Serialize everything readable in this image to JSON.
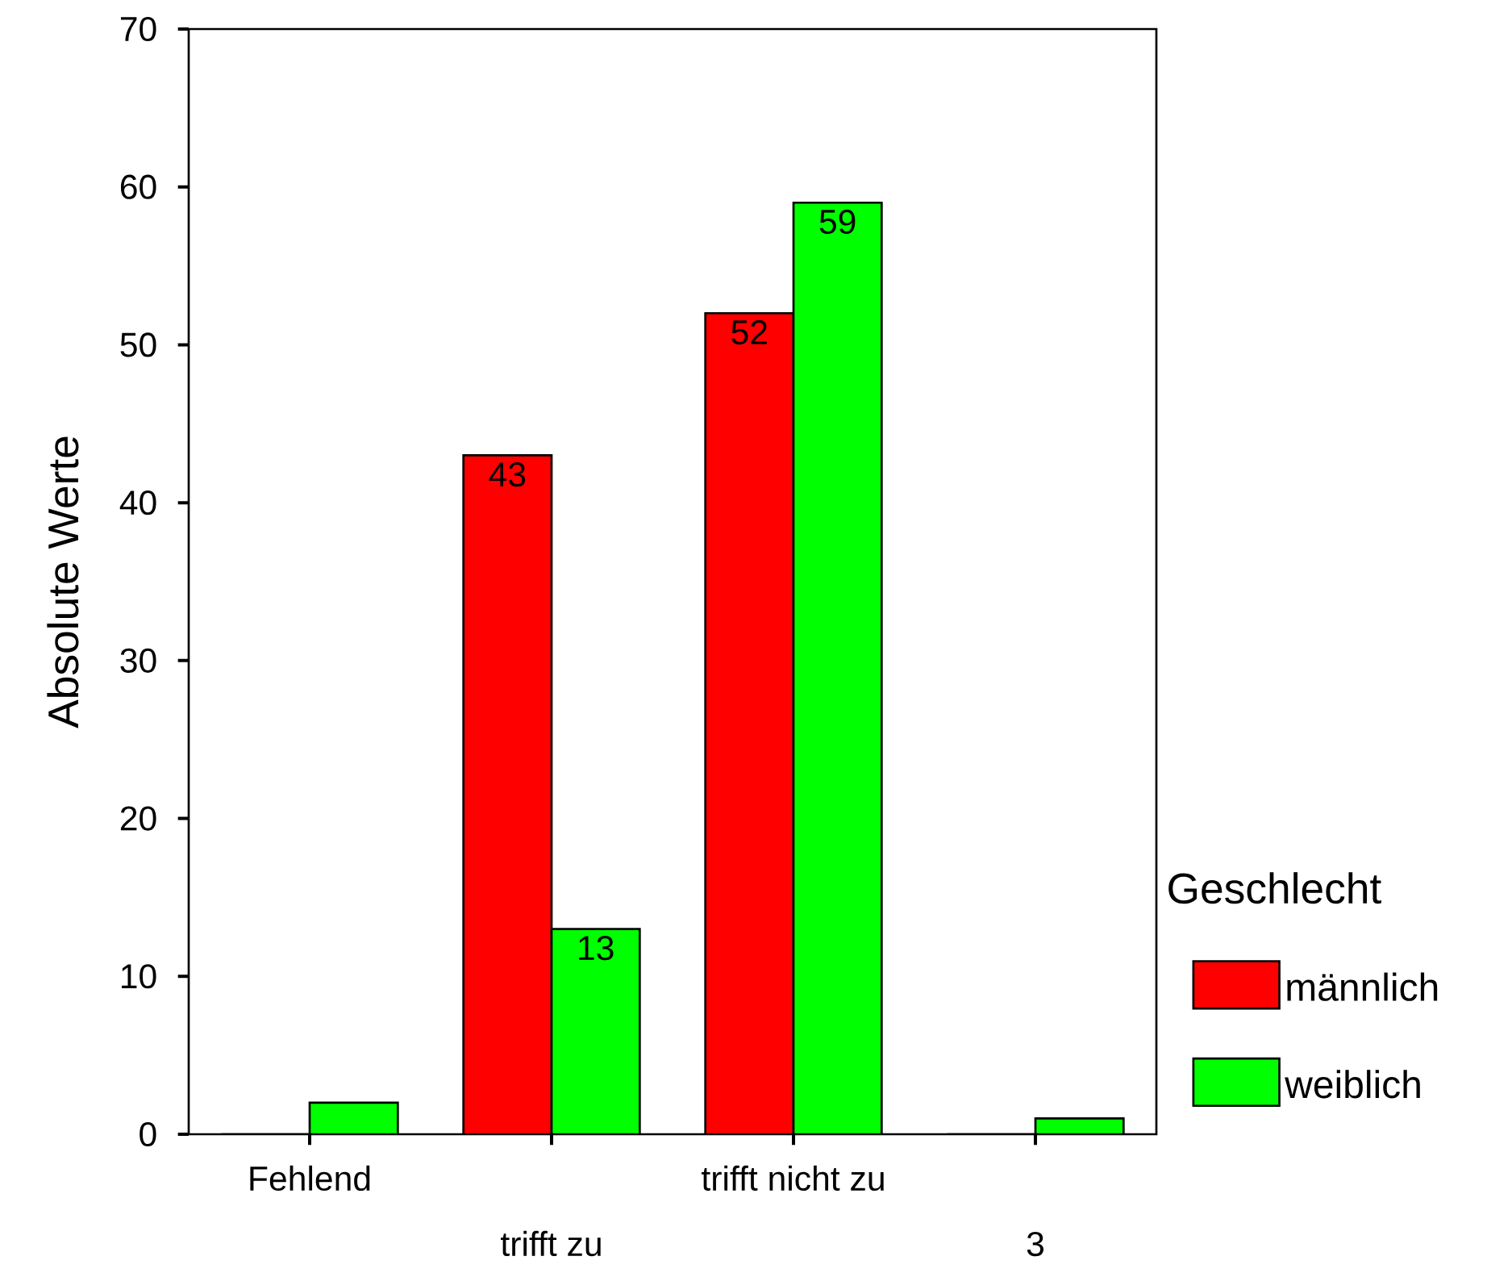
{
  "chart_data": {
    "type": "bar",
    "ylabel": "Absolute Werte",
    "legend_title": "Geschlecht",
    "legend": "right",
    "grid": false,
    "categories": [
      "Fehlend",
      "trifft zu",
      "trifft nicht zu",
      "3"
    ],
    "ylim": [
      0,
      70
    ],
    "yticks": [
      0,
      10,
      20,
      30,
      40,
      50,
      60,
      70
    ],
    "series": [
      {
        "name": "männlich",
        "color": "#ff0000",
        "values": [
          0,
          43,
          52,
          0
        ],
        "value_labels": [
          null,
          "43",
          "52",
          null
        ]
      },
      {
        "name": "weiblich",
        "color": "#00ff00",
        "values": [
          2,
          13,
          59,
          1
        ],
        "value_labels": [
          null,
          "13",
          "59",
          null
        ]
      }
    ]
  }
}
